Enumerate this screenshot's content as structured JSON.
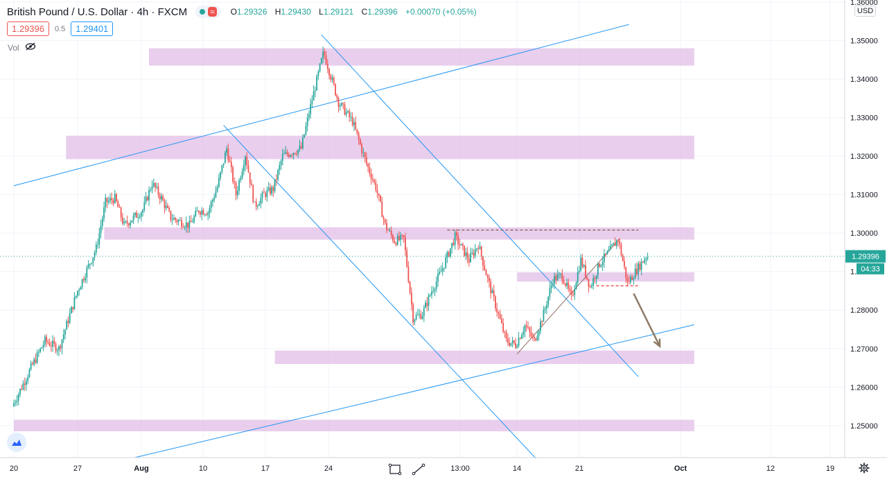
{
  "header": {
    "title": "British Pound / U.S. Dollar · 4h · FXCM",
    "ohlc": {
      "o_label": "O",
      "o": "1.29326",
      "h_label": "H",
      "h": "1.29430",
      "l_label": "L",
      "l": "1.29121",
      "c_label": "C",
      "c": "1.29396",
      "change": "+0.00070 (+0.05%)"
    }
  },
  "trade": {
    "sell_price": "1.29396",
    "spread": "0.5",
    "buy_price": "1.29401"
  },
  "indicator": {
    "label": "Vol"
  },
  "price_axis": {
    "currency": "USD"
  },
  "colors": {
    "up": "#26a69a",
    "down": "#ef5350",
    "zone": "#e1bee7",
    "trendline": "#2196f3",
    "wedge": "#8d6e63",
    "arrow": "#8d7b63",
    "last_price_label": "#26a69a"
  },
  "icons": {
    "logo": "tradingview-cloud-icon",
    "eye": "eye-off-icon",
    "tool1": "rectangle-tool-icon",
    "tool2": "trendline-tool-icon",
    "settings": "gear-icon"
  },
  "chart_data": {
    "type": "candlestick",
    "title": "British Pound / U.S. Dollar",
    "timeframe": "4h",
    "xlabel": "",
    "ylabel": "",
    "ylim": [
      1.2415,
      1.3602
    ],
    "y_ticks": [
      "1.36000",
      "1.35000",
      "1.34000",
      "1.33000",
      "1.32000",
      "1.31000",
      "1.30000",
      "1.29000",
      "1.28000",
      "1.27000",
      "1.26000",
      "1.25000"
    ],
    "x_ticks": [
      "20",
      "27",
      "Aug",
      "10",
      "17",
      "24",
      "13:00",
      "14",
      "21",
      "Oct",
      "12",
      "19"
    ],
    "last_price": {
      "label": "1.29396",
      "value": 1.29396
    },
    "countdown": "04:33",
    "path": [
      {
        "day": 0,
        "price": 1.255
      },
      {
        "day": 2,
        "price": 1.265
      },
      {
        "day": 3.5,
        "price": 1.272
      },
      {
        "day": 5,
        "price": 1.27
      },
      {
        "day": 7,
        "price": 1.285
      },
      {
        "day": 9,
        "price": 1.296
      },
      {
        "day": 10,
        "price": 1.308
      },
      {
        "day": 11,
        "price": 1.309
      },
      {
        "day": 12,
        "price": 1.302
      },
      {
        "day": 14,
        "price": 1.306
      },
      {
        "day": 15,
        "price": 1.313
      },
      {
        "day": 16,
        "price": 1.309
      },
      {
        "day": 17,
        "price": 1.304
      },
      {
        "day": 19,
        "price": 1.302
      },
      {
        "day": 20,
        "price": 1.306
      },
      {
        "day": 21,
        "price": 1.3055
      },
      {
        "day": 22,
        "price": 1.312
      },
      {
        "day": 23,
        "price": 1.322
      },
      {
        "day": 24,
        "price": 1.31
      },
      {
        "day": 25,
        "price": 1.3205
      },
      {
        "day": 26,
        "price": 1.307
      },
      {
        "day": 27,
        "price": 1.31
      },
      {
        "day": 28,
        "price": 1.3115
      },
      {
        "day": 29,
        "price": 1.32
      },
      {
        "day": 31,
        "price": 1.322
      },
      {
        "day": 32,
        "price": 1.333
      },
      {
        "day": 33.4,
        "price": 1.347
      },
      {
        "day": 35,
        "price": 1.334
      },
      {
        "day": 36.5,
        "price": 1.329
      },
      {
        "day": 38,
        "price": 1.318
      },
      {
        "day": 39,
        "price": 1.312
      },
      {
        "day": 40,
        "price": 1.302
      },
      {
        "day": 41,
        "price": 1.298
      },
      {
        "day": 42,
        "price": 1.2985
      },
      {
        "day": 43,
        "price": 1.278
      },
      {
        "day": 44,
        "price": 1.279
      },
      {
        "day": 45,
        "price": 1.285
      },
      {
        "day": 46,
        "price": 1.29
      },
      {
        "day": 47.5,
        "price": 1.299
      },
      {
        "day": 49,
        "price": 1.293
      },
      {
        "day": 50,
        "price": 1.297
      },
      {
        "day": 51,
        "price": 1.288
      },
      {
        "day": 52,
        "price": 1.28
      },
      {
        "day": 53,
        "price": 1.272
      },
      {
        "day": 54,
        "price": 1.271
      },
      {
        "day": 55,
        "price": 1.276
      },
      {
        "day": 56,
        "price": 1.272
      },
      {
        "day": 57,
        "price": 1.279
      },
      {
        "day": 58,
        "price": 1.288
      },
      {
        "day": 59,
        "price": 1.289
      },
      {
        "day": 60,
        "price": 1.283
      },
      {
        "day": 61,
        "price": 1.293
      },
      {
        "day": 62,
        "price": 1.286
      },
      {
        "day": 63,
        "price": 1.292
      },
      {
        "day": 64,
        "price": 1.295
      },
      {
        "day": 65,
        "price": 1.2985
      },
      {
        "day": 66,
        "price": 1.287
      },
      {
        "day": 67,
        "price": 1.2905
      },
      {
        "day": 68,
        "price": 1.29396
      }
    ],
    "zones": [
      {
        "low": 1.3435,
        "high": 1.348,
        "from_day": 14.5,
        "to_day": 73
      },
      {
        "low": 1.3192,
        "high": 1.3253,
        "from_day": 5.6,
        "to_day": 73
      },
      {
        "low": 1.2983,
        "high": 1.3015,
        "from_day": 9.7,
        "to_day": 73
      },
      {
        "low": 1.2874,
        "high": 1.2898,
        "from_day": 54,
        "to_day": 73
      },
      {
        "low": 1.266,
        "high": 1.2695,
        "from_day": 28,
        "to_day": 73
      },
      {
        "low": 1.2485,
        "high": 1.2515,
        "from_day": 0,
        "to_day": 73
      }
    ],
    "trendlines": [
      {
        "name": "upper-channel-line",
        "from": {
          "day": 0,
          "price": 1.3123
        },
        "to": {
          "day": 66,
          "price": 1.3542
        }
      },
      {
        "name": "lower-channel-line",
        "from": {
          "day": 13,
          "price": 1.2417
        },
        "to": {
          "day": 73,
          "price": 1.2762
        }
      },
      {
        "name": "descending-line-a",
        "from": {
          "day": 33,
          "price": 1.3515
        },
        "to": {
          "day": 67,
          "price": 1.2627
        }
      },
      {
        "name": "descending-line-b",
        "from": {
          "day": 22.5,
          "price": 1.328
        },
        "to": {
          "day": 56,
          "price": 1.2415
        }
      }
    ],
    "wedge_lines": [
      {
        "name": "rising-support-line",
        "from": {
          "day": 54,
          "price": 1.2686
        },
        "to": {
          "day": 65,
          "price": 1.2985
        }
      }
    ],
    "dashed_levels": [
      {
        "name": "resistance-dashed-line",
        "price": 1.3008,
        "from_day": 46.5,
        "to_day": 67,
        "color": "#8d6e63"
      },
      {
        "name": "support-dashed-line",
        "price": 1.2863,
        "from_day": 62.5,
        "to_day": 67,
        "color": "#ef5350"
      }
    ],
    "forecast_arrow": {
      "from": {
        "day": 66.5,
        "price": 1.2843
      },
      "to": {
        "day": 69.3,
        "price": 1.2706
      }
    }
  }
}
